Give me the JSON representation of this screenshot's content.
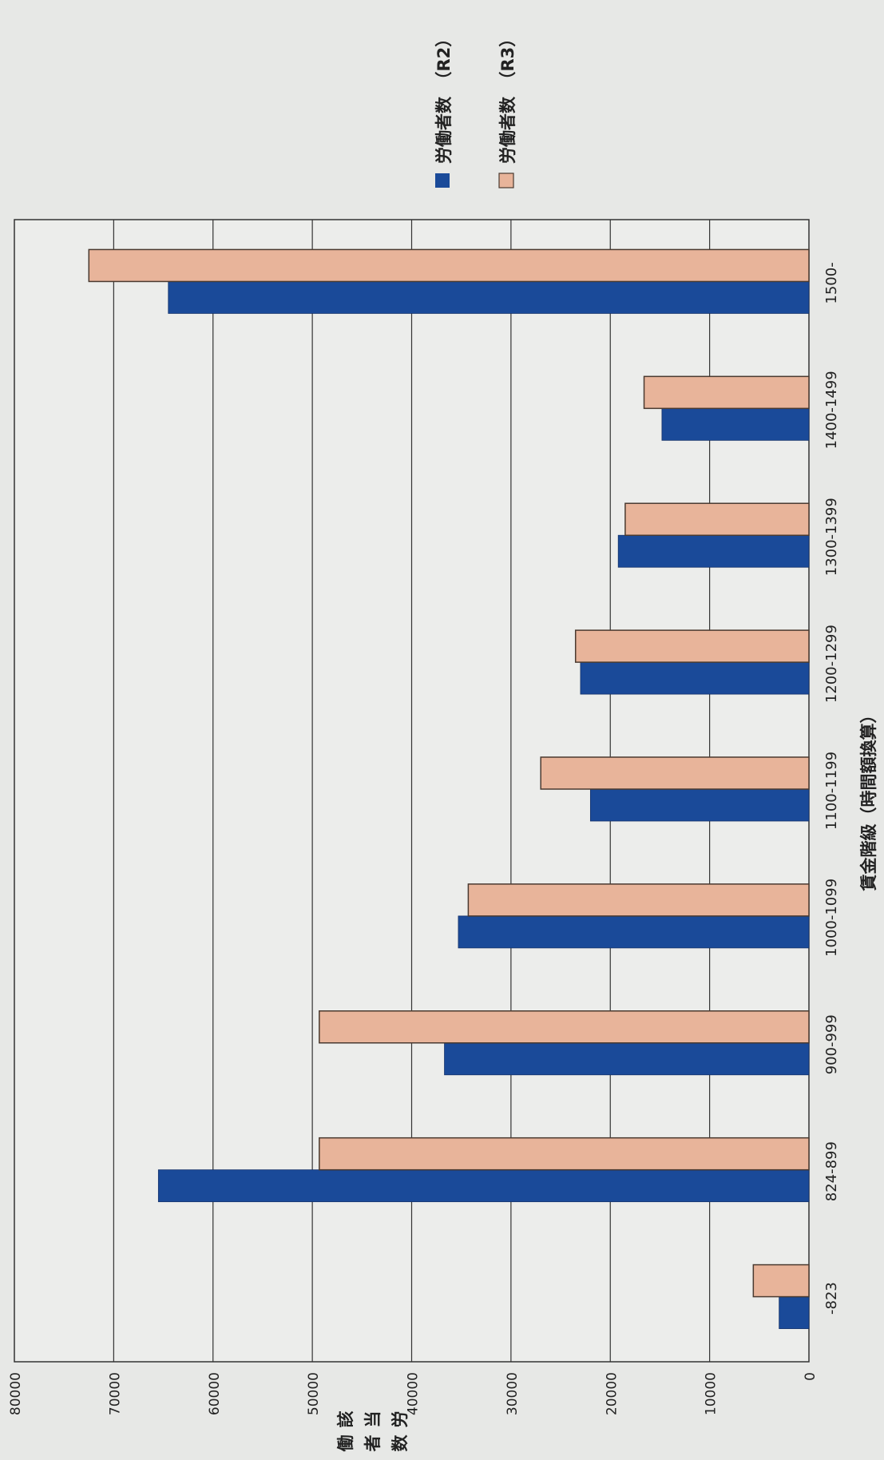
{
  "chart_data": {
    "type": "bar",
    "orientation": "horizontal",
    "rotated_page": true,
    "categories": [
      "-823",
      "824-899",
      "900-999",
      "1000-1099",
      "1100-1199",
      "1200-1299",
      "1300-1399",
      "1400-1499",
      "1500-"
    ],
    "series": [
      {
        "name": "労働者数　（R2）",
        "color": "#1a4a99",
        "values": [
          3000,
          65500,
          36700,
          35300,
          22000,
          23000,
          19200,
          14800,
          64500
        ]
      },
      {
        "name": "労働者数　（R3）",
        "color": "#e8b49a",
        "values": [
          5600,
          49300,
          49300,
          34300,
          27000,
          23500,
          18500,
          16600,
          72500
        ]
      }
    ],
    "xlabel": "賃金階級（時間額換算）",
    "ylabel": "該当労働者数",
    "ylim": [
      0,
      80000
    ],
    "ticks": [
      0,
      10000,
      20000,
      30000,
      40000,
      50000,
      60000,
      70000,
      80000
    ],
    "grid": true,
    "legend_position": "top-right"
  }
}
